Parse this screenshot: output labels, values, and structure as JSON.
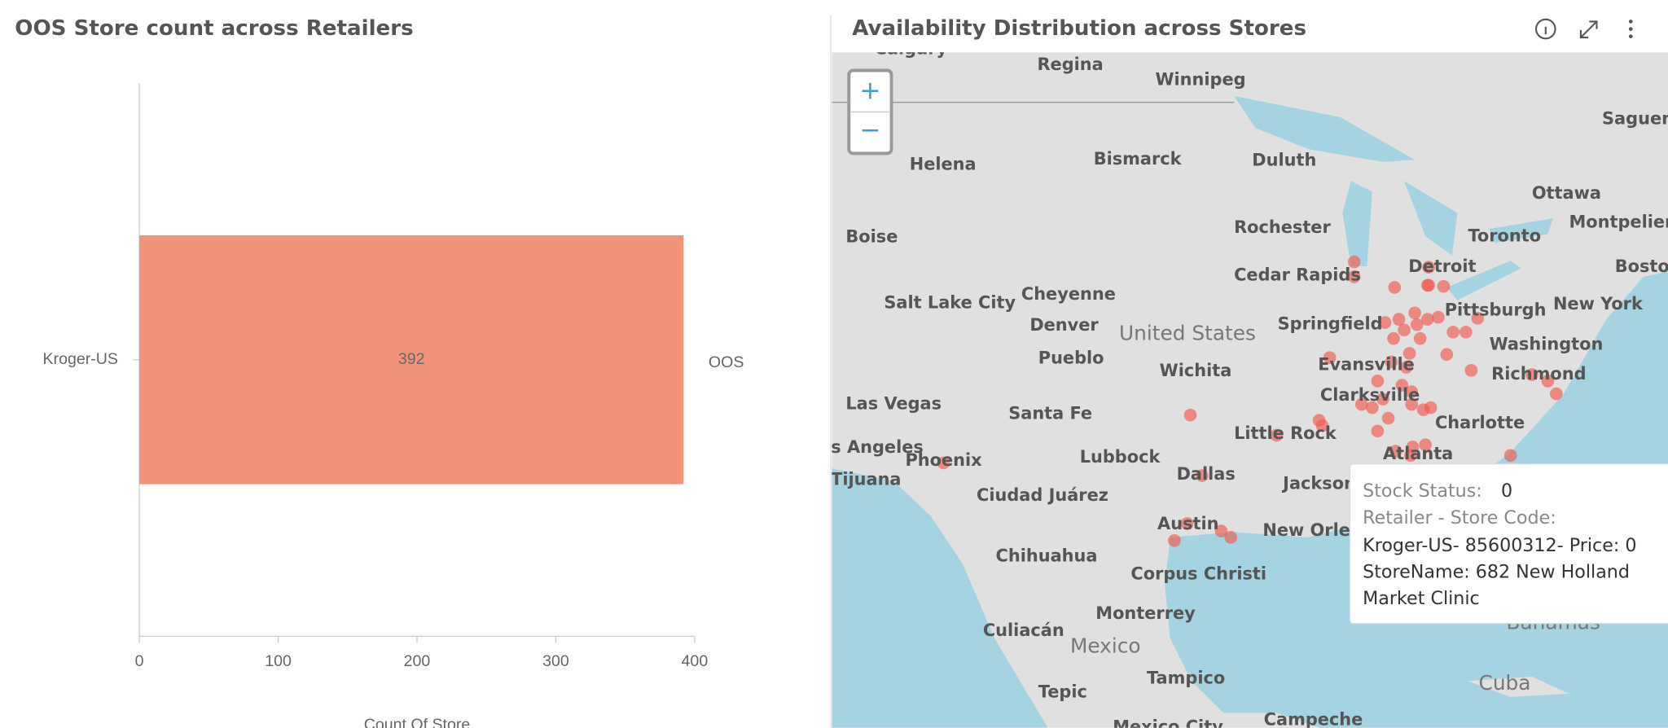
{
  "chart_data": {
    "type": "bar",
    "orientation": "horizontal",
    "title": "OOS Store count across Retailers",
    "categories": [
      "Kroger-US"
    ],
    "series": [
      {
        "name": "OOS",
        "color": "#f0937a",
        "values": [
          392
        ]
      }
    ],
    "xlim": [
      0,
      400
    ],
    "xticks": [
      0,
      100,
      200,
      300,
      400
    ],
    "xlabel": "Count Of Store",
    "legend": "right"
  },
  "map_panel": {
    "title": "Availability Distribution across Stores",
    "zoom_in": "+",
    "zoom_out": "−",
    "place_labels": [
      "Calgary",
      "Regina",
      "Winnipeg",
      "Saguenay",
      "Helena",
      "Bismarck",
      "Duluth",
      "Ottawa",
      "Montpelier",
      "Boise",
      "Rochester",
      "Toronto",
      "Detroit",
      "Boston",
      "Cedar Rapids",
      "Salt Lake City",
      "Cheyenne",
      "Denver",
      "Pittsburgh",
      "New York",
      "Springfield",
      "United States",
      "Washington",
      "Pueblo",
      "Wichita",
      "Evansville",
      "Richmond",
      "Las Vegas",
      "Santa Fe",
      "Clarksville",
      "Little Rock",
      "Charlotte",
      "Los Angeles",
      "Phoenix",
      "Lubbock",
      "Dallas",
      "Atlanta",
      "Tijuana",
      "Ciudad Juárez",
      "Jackson",
      "Austin",
      "New Orleans",
      "Chihuahua",
      "Corpus Christi",
      "Monterrey",
      "Culiacán",
      "Mexico",
      "Tampico",
      "Tepic",
      "Cuba",
      "Bahamas",
      "Campeche",
      "Mexico City"
    ],
    "tooltip": {
      "stock_status_label": "Stock Status:",
      "stock_status_value": "0",
      "store_code_label": "Retailer - Store Code:",
      "lines": [
        "Kroger-US- 85600312- Price: 0",
        "StoreName: 682 New Holland",
        "Market Clinic"
      ]
    }
  }
}
